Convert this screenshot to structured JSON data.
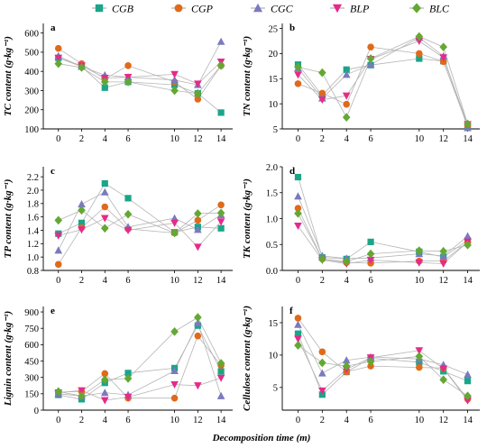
{
  "figure": {
    "xlabel": "Decomposition time (m)",
    "x_ticks": [
      0,
      2,
      4,
      6,
      10,
      12,
      14
    ]
  },
  "legend": [
    {
      "name": "CGB",
      "color": "#1aa589",
      "marker": "square"
    },
    {
      "name": "CGP",
      "color": "#e06a1b",
      "marker": "circle"
    },
    {
      "name": "CGC",
      "color": "#7b79c0",
      "marker": "triangle-up"
    },
    {
      "name": "BLP",
      "color": "#e62a8a",
      "marker": "triangle-down"
    },
    {
      "name": "BLC",
      "color": "#64a833",
      "marker": "diamond"
    }
  ],
  "chart_data": [
    {
      "type": "scatter",
      "panel": "a",
      "ylabel": "TC content (g·kg⁻¹)",
      "x": [
        0,
        2,
        4,
        6,
        10,
        12,
        14
      ],
      "ylim": [
        100,
        650
      ],
      "yticks": [
        100,
        200,
        300,
        400,
        500,
        600
      ],
      "grid": false,
      "series": [
        {
          "name": "CGB",
          "values": [
            470,
            425,
            315,
            345,
            330,
            285,
            185
          ]
        },
        {
          "name": "CGP",
          "values": [
            520,
            440,
            360,
            430,
            345,
            255,
            430
          ]
        },
        {
          "name": "CGC",
          "values": [
            480,
            425,
            380,
            370,
            355,
            330,
            555
          ]
        },
        {
          "name": "BLP",
          "values": [
            470,
            430,
            365,
            370,
            385,
            335,
            450
          ]
        },
        {
          "name": "BLC",
          "values": [
            440,
            420,
            345,
            345,
            300,
            285,
            430
          ]
        }
      ]
    },
    {
      "type": "scatter",
      "panel": "b",
      "ylabel": "TN content (g·kg⁻¹)",
      "x": [
        0,
        2,
        4,
        6,
        10,
        12,
        14
      ],
      "ylim": [
        5,
        26
      ],
      "yticks": [
        5,
        10,
        15,
        20,
        25
      ],
      "grid": false,
      "series": [
        {
          "name": "CGB",
          "values": [
            17.8,
            11.7,
            16.8,
            17.7,
            19.0,
            18.5,
            5.5
          ]
        },
        {
          "name": "CGP",
          "values": [
            14.0,
            12.1,
            9.9,
            21.3,
            20.0,
            18.4,
            5.6
          ]
        },
        {
          "name": "CGC",
          "values": [
            17.1,
            11.1,
            15.8,
            17.8,
            23.2,
            19.5,
            5.2
          ]
        },
        {
          "name": "BLP",
          "values": [
            15.8,
            10.8,
            11.6,
            18.9,
            22.5,
            19.2,
            5.9
          ]
        },
        {
          "name": "BLC",
          "values": [
            17.3,
            16.2,
            7.3,
            19.0,
            23.4,
            21.3,
            6.0
          ]
        }
      ]
    },
    {
      "type": "scatter",
      "panel": "c",
      "ylabel": "TP content (g·kg⁻¹)",
      "x": [
        0,
        2,
        4,
        6,
        10,
        12,
        14
      ],
      "ylim": [
        0.8,
        2.35
      ],
      "yticks": [
        0.8,
        1.0,
        1.2,
        1.4,
        1.6,
        1.8,
        2.0,
        2.2
      ],
      "grid": false,
      "series": [
        {
          "name": "CGB",
          "values": [
            1.35,
            1.51,
            2.1,
            1.88,
            1.37,
            1.45,
            1.43
          ]
        },
        {
          "name": "CGP",
          "values": [
            0.89,
            1.44,
            1.75,
            1.42,
            1.36,
            1.55,
            1.78
          ]
        },
        {
          "name": "CGC",
          "values": [
            1.1,
            1.79,
            1.97,
            1.45,
            1.58,
            1.41,
            1.63
          ]
        },
        {
          "name": "BLP",
          "values": [
            1.32,
            1.41,
            1.58,
            1.4,
            1.51,
            1.15,
            1.53
          ]
        },
        {
          "name": "BLC",
          "values": [
            1.55,
            1.7,
            1.43,
            1.64,
            1.36,
            1.65,
            1.66
          ]
        }
      ]
    },
    {
      "type": "scatter",
      "panel": "d",
      "ylabel": "TK content (g·kg⁻¹)",
      "x": [
        0,
        2,
        4,
        6,
        10,
        12,
        14
      ],
      "ylim": [
        0,
        2.0
      ],
      "yticks": [
        0.0,
        0.5,
        1.0,
        1.5,
        2.0
      ],
      "grid": false,
      "series": [
        {
          "name": "CGB",
          "values": [
            1.8,
            0.25,
            0.22,
            0.55,
            0.36,
            0.26,
            0.58
          ]
        },
        {
          "name": "CGP",
          "values": [
            1.2,
            0.22,
            0.15,
            0.14,
            0.18,
            0.18,
            0.55
          ]
        },
        {
          "name": "CGC",
          "values": [
            1.43,
            0.28,
            0.23,
            0.24,
            0.32,
            0.28,
            0.66
          ]
        },
        {
          "name": "BLP",
          "values": [
            0.86,
            0.2,
            0.13,
            0.2,
            0.15,
            0.13,
            0.55
          ]
        },
        {
          "name": "BLC",
          "values": [
            1.1,
            0.22,
            0.17,
            0.32,
            0.38,
            0.37,
            0.49
          ]
        }
      ]
    },
    {
      "type": "scatter",
      "panel": "e",
      "ylabel": "Lignin content (g·kg⁻¹)",
      "x": [
        0,
        2,
        4,
        6,
        10,
        12,
        14
      ],
      "ylim": [
        0,
        950
      ],
      "yticks": [
        0,
        150,
        300,
        450,
        600,
        750,
        900
      ],
      "grid": false,
      "series": [
        {
          "name": "CGB",
          "values": [
            140,
            100,
            250,
            340,
            385,
            775,
            355
          ]
        },
        {
          "name": "CGP",
          "values": [
            165,
            170,
            335,
            110,
            110,
            680,
            410
          ]
        },
        {
          "name": "CGC",
          "values": [
            150,
            130,
            160,
            140,
            360,
            800,
            130
          ]
        },
        {
          "name": "BLP",
          "values": [
            160,
            180,
            90,
            120,
            235,
            225,
            295
          ]
        },
        {
          "name": "BLC",
          "values": [
            170,
            130,
            280,
            290,
            720,
            850,
            430
          ]
        }
      ]
    },
    {
      "type": "scatter",
      "panel": "f",
      "ylabel": "Cellulose content (g·kg⁻¹)",
      "x": [
        0,
        2,
        4,
        6,
        10,
        12,
        14
      ],
      "ylim": [
        1.5,
        17.5
      ],
      "yticks": [
        5,
        10,
        15
      ],
      "grid": false,
      "series": [
        {
          "name": "CGB",
          "values": [
            13.3,
            3.9,
            7.4,
            9.5,
            8.9,
            7.5,
            6.0
          ]
        },
        {
          "name": "CGP",
          "values": [
            15.7,
            10.5,
            7.4,
            8.3,
            8.1,
            8.0,
            3.2
          ]
        },
        {
          "name": "CGC",
          "values": [
            14.7,
            7.2,
            9.2,
            9.7,
            9.4,
            8.5,
            7.0
          ]
        },
        {
          "name": "BLP",
          "values": [
            12.5,
            4.5,
            7.8,
            9.6,
            10.7,
            7.9,
            3.0
          ]
        },
        {
          "name": "BLC",
          "values": [
            11.5,
            8.8,
            8.3,
            9.0,
            9.8,
            6.2,
            3.7
          ]
        }
      ]
    }
  ]
}
